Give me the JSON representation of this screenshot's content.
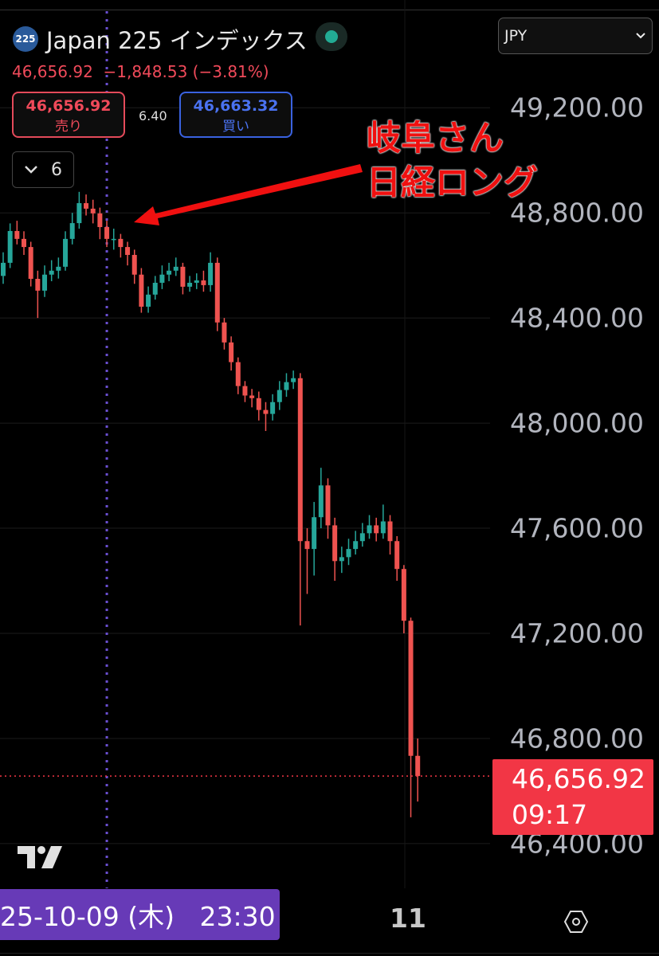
{
  "header": {
    "symbol_badge": "225",
    "title": "Japan 225 インデックス",
    "quote_line": "46,656.92  −1,848.53 (−3.81%)",
    "sell": {
      "price": "46,656.92",
      "label": "売り"
    },
    "spread": "6.40",
    "buy": {
      "price": "46,663.32",
      "label": "買い"
    },
    "collapse_count": "6",
    "currency": "JPY",
    "market_status": "open"
  },
  "annotation": {
    "line1": "岐阜さん",
    "line2": "日経ロング",
    "color": "#f01010"
  },
  "last_price": {
    "price": "46,656.92",
    "countdown": "09:17",
    "color": "#f23645"
  },
  "crosshair_label": "25-10-09 (木)   23:30",
  "x_tick": "11",
  "icons": {
    "logo": "tradingview-logo-icon",
    "settings": "hexagon-settings-icon",
    "dropdown": "chevron-down-icon"
  },
  "colors": {
    "up": "#26a69a",
    "down": "#ef5350",
    "crosshair": "#6a4fd0",
    "background": "#000000"
  },
  "chart_data": {
    "type": "candlestick",
    "title": "",
    "ylim": [
      46230,
      49610
    ],
    "y_ticks": [
      "49,200.00",
      "48,800.00",
      "48,400.00",
      "48,000.00",
      "47,600.00",
      "47,200.00",
      "46,800.00",
      "46,400.00"
    ],
    "y_tick_values": [
      49200,
      48800,
      48400,
      48000,
      47600,
      47200,
      46800,
      46400
    ],
    "x_ticks": [
      "11"
    ],
    "grid": true,
    "crosshair_index": 15,
    "last_value": 46656.92,
    "candles_ohlc": [
      [
        48560,
        48650,
        48530,
        48610
      ],
      [
        48610,
        48760,
        48590,
        48731
      ],
      [
        48731,
        48770,
        48680,
        48701
      ],
      [
        48701,
        48730,
        48640,
        48670
      ],
      [
        48670,
        48690,
        48520,
        48549
      ],
      [
        48549,
        48580,
        48400,
        48504
      ],
      [
        48504,
        48600,
        48480,
        48565
      ],
      [
        48565,
        48620,
        48540,
        48580
      ],
      [
        48580,
        48630,
        48550,
        48595
      ],
      [
        48595,
        48730,
        48580,
        48701
      ],
      [
        48701,
        48800,
        48680,
        48761
      ],
      [
        48761,
        48880,
        48740,
        48837
      ],
      [
        48837,
        48870,
        48790,
        48816
      ],
      [
        48816,
        48850,
        48760,
        48798
      ],
      [
        48798,
        48820,
        48700,
        48746
      ],
      [
        48746,
        48770,
        48670,
        48701
      ],
      [
        48701,
        48740,
        48660,
        48701
      ],
      [
        48701,
        48720,
        48630,
        48670
      ],
      [
        48670,
        48690,
        48600,
        48640
      ],
      [
        48640,
        48660,
        48530,
        48565
      ],
      [
        48565,
        48590,
        48420,
        48443
      ],
      [
        48443,
        48520,
        48420,
        48489
      ],
      [
        48489,
        48560,
        48470,
        48534
      ],
      [
        48534,
        48600,
        48510,
        48565
      ],
      [
        48565,
        48610,
        48540,
        48580
      ],
      [
        48580,
        48630,
        48560,
        48595
      ],
      [
        48595,
        48610,
        48490,
        48519
      ],
      [
        48519,
        48560,
        48500,
        48534
      ],
      [
        48534,
        48570,
        48510,
        48543
      ],
      [
        48543,
        48580,
        48500,
        48525
      ],
      [
        48525,
        48650,
        48500,
        48610
      ],
      [
        48610,
        48630,
        48350,
        48383
      ],
      [
        48383,
        48400,
        48280,
        48307
      ],
      [
        48307,
        48330,
        48200,
        48232
      ],
      [
        48232,
        48250,
        48110,
        48141
      ],
      [
        48141,
        48160,
        48080,
        48105
      ],
      [
        48105,
        48130,
        48060,
        48095
      ],
      [
        48095,
        48120,
        48010,
        48050
      ],
      [
        48050,
        48080,
        47970,
        48035
      ],
      [
        48035,
        48110,
        48010,
        48080
      ],
      [
        48080,
        48160,
        48050,
        48126
      ],
      [
        48126,
        48190,
        48100,
        48156
      ],
      [
        48156,
        48200,
        48130,
        48171
      ],
      [
        48171,
        48190,
        47230,
        47551
      ],
      [
        47551,
        47600,
        47350,
        47521
      ],
      [
        47521,
        47700,
        47420,
        47642
      ],
      [
        47642,
        47830,
        47600,
        47763
      ],
      [
        47763,
        47790,
        47560,
        47611
      ],
      [
        47611,
        47640,
        47400,
        47475
      ],
      [
        47475,
        47530,
        47430,
        47490
      ],
      [
        47490,
        47560,
        47460,
        47521
      ],
      [
        47521,
        47590,
        47500,
        47551
      ],
      [
        47551,
        47620,
        47530,
        47581
      ],
      [
        47581,
        47650,
        47560,
        47611
      ],
      [
        47611,
        47640,
        47550,
        47581
      ],
      [
        47581,
        47690,
        47560,
        47626
      ],
      [
        47626,
        47650,
        47500,
        47551
      ],
      [
        47551,
        47570,
        47400,
        47445
      ],
      [
        47445,
        47460,
        47200,
        47248
      ],
      [
        47248,
        47260,
        46500,
        46734
      ],
      [
        46734,
        46800,
        46560,
        46656.92
      ]
    ]
  }
}
